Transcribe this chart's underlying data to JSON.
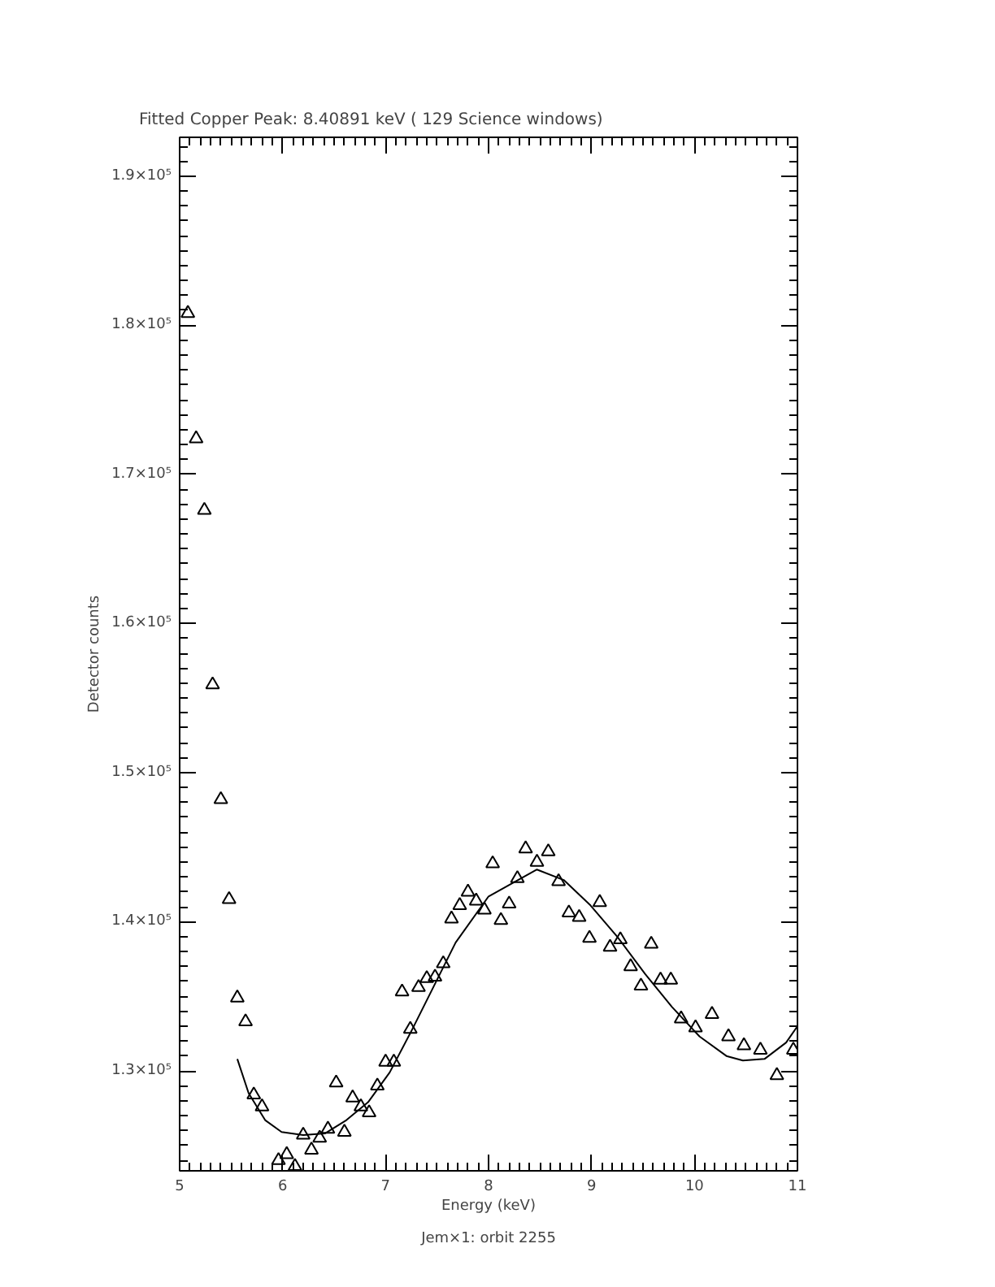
{
  "chart_data": {
    "type": "scatter",
    "title": "Fitted Copper Peak:      8.40891 keV (       129 Science windows)",
    "xlabel": "Energy (keV)",
    "ylabel": "Detector counts",
    "annotations": [
      "Jem×1: orbit 2255"
    ],
    "xlim": [
      5,
      11
    ],
    "xticks": [
      5,
      6,
      7,
      8,
      9,
      10,
      11
    ],
    "ylim": [
      123300,
      192600
    ],
    "yticks": [
      {
        "value": 130000,
        "label": "1.3×10⁵"
      },
      {
        "value": 140000,
        "label": "1.4×10⁵"
      },
      {
        "value": 150000,
        "label": "1.5×10⁵"
      },
      {
        "value": 160000,
        "label": "1.6×10⁵"
      },
      {
        "value": 170000,
        "label": "1.7×10⁵"
      },
      {
        "value": 180000,
        "label": "1.8×10⁵"
      },
      {
        "value": 190000,
        "label": "1.9×10⁵"
      }
    ],
    "grid": false,
    "series": [
      {
        "marker": "triangle",
        "color": "#000000",
        "x": [
          5.08,
          5.16,
          5.24,
          5.32,
          5.4,
          5.48,
          5.56,
          5.64,
          5.72,
          5.8,
          5.96,
          6.04,
          6.12,
          6.2,
          6.28,
          6.36,
          6.44,
          6.52,
          6.6,
          6.68,
          6.76,
          6.84,
          6.92,
          7.0,
          7.08,
          7.16,
          7.24,
          7.32,
          7.4,
          7.48,
          7.56,
          7.64,
          7.72,
          7.8,
          7.88,
          7.96,
          8.04,
          8.12,
          8.2,
          8.28,
          8.36,
          8.47,
          8.58,
          8.68,
          8.78,
          8.88,
          8.98,
          9.08,
          9.18,
          9.28,
          9.38,
          9.48,
          9.58,
          9.67,
          9.77,
          9.87,
          10.01,
          10.17,
          10.33,
          10.48,
          10.64,
          10.8,
          10.96
        ],
        "values": [
          180800,
          172400,
          167600,
          155900,
          148200,
          141500,
          134900,
          133300,
          128400,
          127600,
          124000,
          124400,
          123600,
          125700,
          124700,
          125500,
          126100,
          129200,
          125900,
          128200,
          127600,
          127200,
          129000,
          130600,
          130600,
          135300,
          132800,
          135600,
          136200,
          136300,
          137200,
          140200,
          141100,
          142000,
          141400,
          140800,
          143900,
          140100,
          141200,
          142900,
          144900,
          144000,
          144700,
          142700,
          140600,
          140300,
          138900,
          141300,
          138300,
          138800,
          137000,
          135700,
          138500,
          136100,
          136100,
          133500,
          132900,
          133800,
          132300,
          131700,
          131400,
          129700,
          131400
        ]
      },
      {
        "type": "line",
        "marker": "none",
        "line_style": "solid",
        "color": "#000000",
        "x": [
          5.56,
          5.67,
          5.83,
          5.99,
          6.2,
          6.41,
          6.62,
          6.83,
          7.04,
          7.26,
          7.47,
          7.68,
          8.0,
          8.47,
          8.73,
          8.99,
          9.25,
          9.52,
          9.78,
          10.05,
          10.31,
          10.47,
          10.68,
          10.89,
          11.0
        ],
        "values": [
          130800,
          128500,
          126700,
          125900,
          125700,
          125800,
          126700,
          127900,
          129900,
          132800,
          135700,
          138600,
          141700,
          143500,
          142800,
          141100,
          139000,
          136500,
          134300,
          132300,
          131000,
          130700,
          130800,
          131900,
          133000
        ]
      }
    ]
  }
}
